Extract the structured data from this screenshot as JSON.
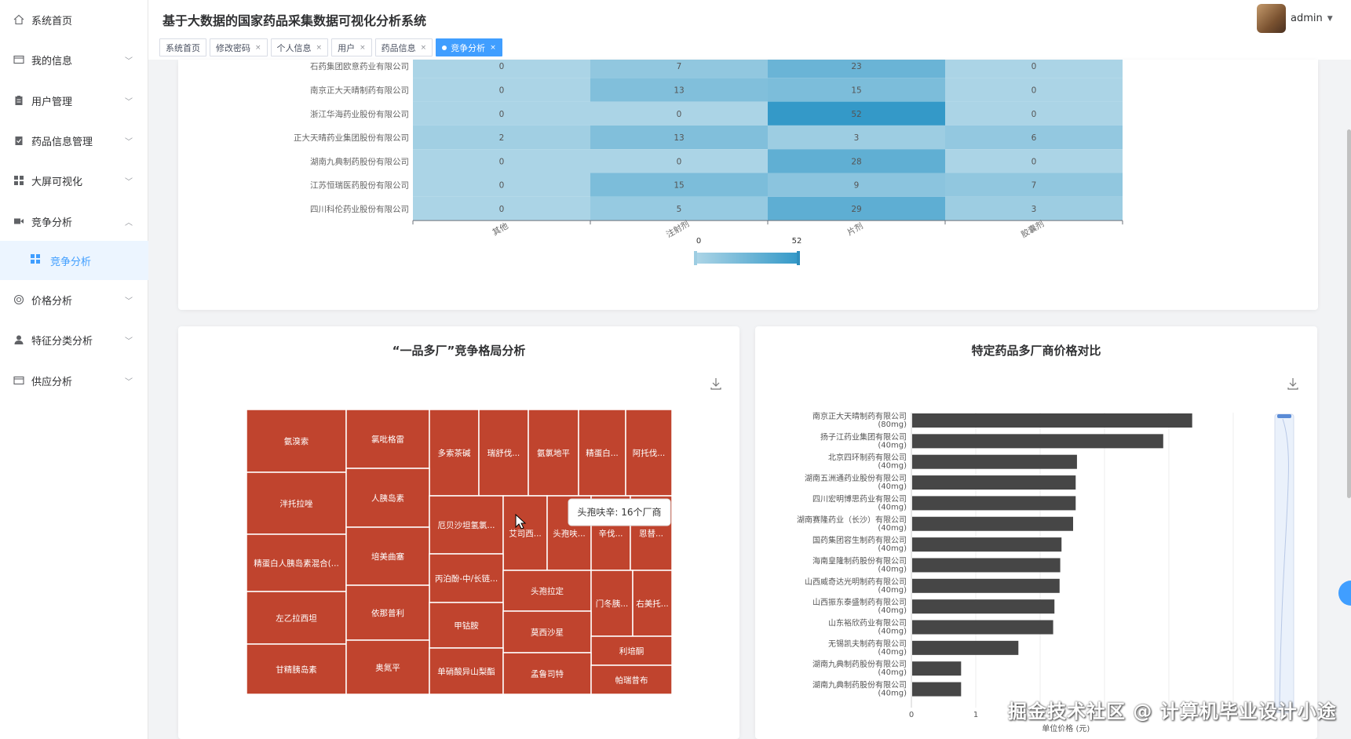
{
  "app": {
    "title": "基于大数据的国家药品采集数据可视化分析系统",
    "user": "admin"
  },
  "sidebar": {
    "items": [
      {
        "label": "系统首页",
        "icon": "home-icon",
        "arrow": false
      },
      {
        "label": "我的信息",
        "icon": "id-card-icon",
        "arrow": true
      },
      {
        "label": "用户管理",
        "icon": "user-clipboard-icon",
        "arrow": true
      },
      {
        "label": "药品信息管理",
        "icon": "clipboard-icon",
        "arrow": true
      },
      {
        "label": "大屏可视化",
        "icon": "grid-icon",
        "arrow": true
      },
      {
        "label": "竞争分析",
        "icon": "video-icon",
        "arrow": true,
        "expanded": true
      },
      {
        "label": "价格分析",
        "icon": "circle-icon",
        "arrow": true
      },
      {
        "label": "特征分类分析",
        "icon": "person-icon",
        "arrow": true
      },
      {
        "label": "供应分析",
        "icon": "id-card-icon",
        "arrow": true
      }
    ],
    "sub_active": {
      "label": "竞争分析",
      "icon": "grid-icon"
    }
  },
  "tabs": [
    {
      "label": "系统首页",
      "closable": false,
      "active": false
    },
    {
      "label": "修改密码",
      "closable": true,
      "active": false
    },
    {
      "label": "个人信息",
      "closable": true,
      "active": false
    },
    {
      "label": "用户",
      "closable": true,
      "active": false
    },
    {
      "label": "药品信息",
      "closable": true,
      "active": false
    },
    {
      "label": "竞争分析",
      "closable": true,
      "active": true
    }
  ],
  "chart_data": [
    {
      "type": "heatmap",
      "rows": [
        "石药集团欧意药业有限公司",
        "南京正大天晴制药有限公司",
        "浙江华海药业股份有限公司",
        "正大天晴药业集团股份有限公司",
        "湖南九典制药股份有限公司",
        "江苏恒瑞医药股份有限公司",
        "四川科伦药业股份有限公司"
      ],
      "columns": [
        "其他",
        "注射剂",
        "片剂",
        "胶囊剂"
      ],
      "values": [
        [
          0,
          7,
          23,
          0
        ],
        [
          0,
          13,
          15,
          0
        ],
        [
          0,
          0,
          52,
          0
        ],
        [
          2,
          13,
          3,
          6
        ],
        [
          0,
          0,
          28,
          0
        ],
        [
          0,
          15,
          9,
          7
        ],
        [
          0,
          5,
          29,
          3
        ]
      ],
      "visual_map": {
        "min": 0,
        "max": 52
      }
    },
    {
      "type": "treemap",
      "title": "“一品多厂”竞争格局分析",
      "tooltip": "头孢呋辛: 16个厂商",
      "labels": [
        "氨溴索",
        "氯吡格雷",
        "多索茶碱",
        "瑞舒伐...",
        "氨氯地平",
        "精蛋白...",
        "阿托伐...",
        "泮托拉唑",
        "人胰岛素",
        "厄贝沙坦氢氯...",
        "艾司西...",
        "头孢呋...",
        "辛伐...",
        "恩替...",
        "精蛋白人胰岛素混合(...",
        "培美曲塞",
        "丙泊酚-中/长链...",
        "头孢拉定",
        "门冬胰...",
        "右美托...",
        "左乙拉西坦",
        "依那普利",
        "甲钴胺",
        "莫西沙星",
        "利培酮",
        "甘精胰岛素",
        "奥氮平",
        "单硝酸异山梨酯",
        "孟鲁司特",
        "帕瑞昔布"
      ]
    },
    {
      "type": "bar",
      "orientation": "horizontal",
      "title": "特定药品多厂商价格对比",
      "xlabel": "单位价格 (元)",
      "x_ticks": [
        "0",
        "1"
      ],
      "categories": [
        [
          "南京正大天晴制药有限公司",
          "(80mg)"
        ],
        [
          "扬子江药业集团有限公司",
          "(40mg)"
        ],
        [
          "北京四环制药有限公司",
          "(40mg)"
        ],
        [
          "湖南五洲通药业股份有限公司",
          "(40mg)"
        ],
        [
          "四川宏明博思药业有限公司",
          "(40mg)"
        ],
        [
          "湖南赛隆药业（长沙）有限公司",
          "(40mg)"
        ],
        [
          "国药集团容生制药有限公司",
          "(40mg)"
        ],
        [
          "海南皇隆制药股份有限公司",
          "(40mg)"
        ],
        [
          "山西威奇达光明制药有限公司",
          "(40mg)"
        ],
        [
          "山西振东泰盛制药有限公司",
          "(40mg)"
        ],
        [
          "山东裕欣药业有限公司",
          "(40mg)"
        ],
        [
          "无锡凯夫制药有限公司",
          "(40mg)"
        ],
        [
          "湖南九典制药股份有限公司",
          "(40mg)"
        ],
        [
          "湖南九典制药股份有限公司",
          "(40mg)"
        ]
      ],
      "values": [
        4.35,
        3.9,
        2.56,
        2.54,
        2.54,
        2.5,
        2.32,
        2.3,
        2.29,
        2.21,
        2.19,
        1.65,
        0.76,
        0.76
      ],
      "color": "#464646"
    }
  ],
  "watermark": "掘金技术社区 @ 计算机毕业设计小途"
}
